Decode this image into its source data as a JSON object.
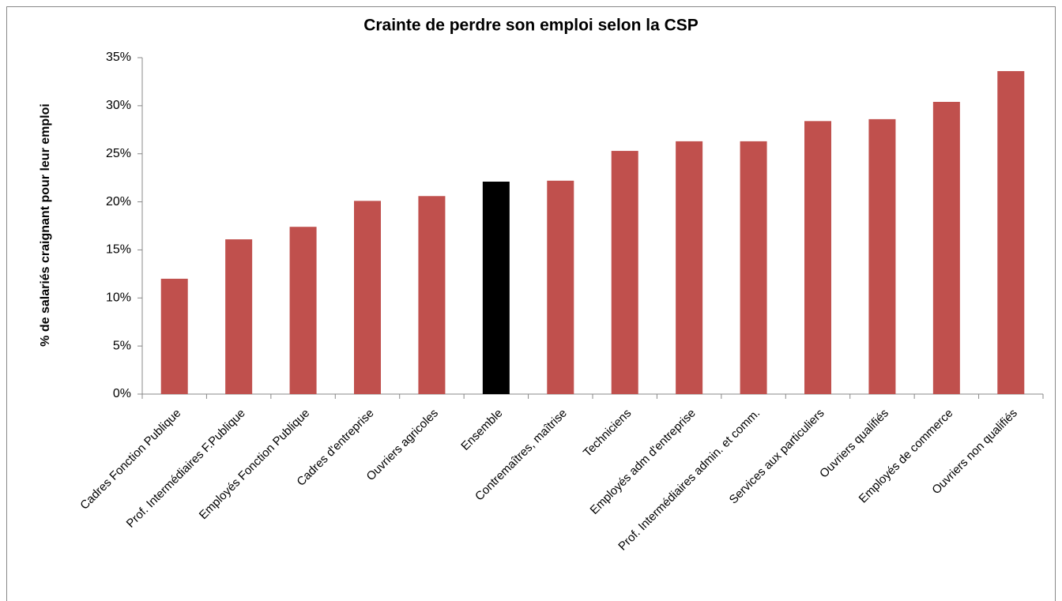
{
  "chart_data": {
    "type": "bar",
    "title": "Crainte de perdre son emploi selon la CSP",
    "y_label": "% de salariés craignant pour leur emploi",
    "categories": [
      "Cadres Fonction Publique",
      "Prof. Intermédiaires F.Publique",
      "Employés Fonction Publique",
      "Cadres d'entreprise",
      "Ouvriers agricoles",
      "Ensemble",
      "Contremaîtres, maîtrise",
      "Techniciens",
      "Employés adm d'entreprise",
      "Prof. Intermédiaires admin. et comm.",
      "Services aux particuliers",
      "Ouvriers qualifiés",
      "Employés de commerce",
      "Ouvriers non qualifiés"
    ],
    "values": [
      12.0,
      16.1,
      17.4,
      20.1,
      20.6,
      22.1,
      22.2,
      25.3,
      26.3,
      26.3,
      28.4,
      28.6,
      30.4,
      33.6
    ],
    "colors": [
      "#c0504d",
      "#c0504d",
      "#c0504d",
      "#c0504d",
      "#c0504d",
      "#000000",
      "#c0504d",
      "#c0504d",
      "#c0504d",
      "#c0504d",
      "#c0504d",
      "#c0504d",
      "#c0504d",
      "#c0504d"
    ],
    "ylim": [
      0,
      35
    ],
    "yticks": [
      {
        "value": 0,
        "label": "0%"
      },
      {
        "value": 5,
        "label": "5%"
      },
      {
        "value": 10,
        "label": "10%"
      },
      {
        "value": 15,
        "label": "15%"
      },
      {
        "value": 20,
        "label": "20%"
      },
      {
        "value": 25,
        "label": "25%"
      },
      {
        "value": 30,
        "label": "30%"
      },
      {
        "value": 35,
        "label": "35%"
      }
    ],
    "grid": false
  }
}
